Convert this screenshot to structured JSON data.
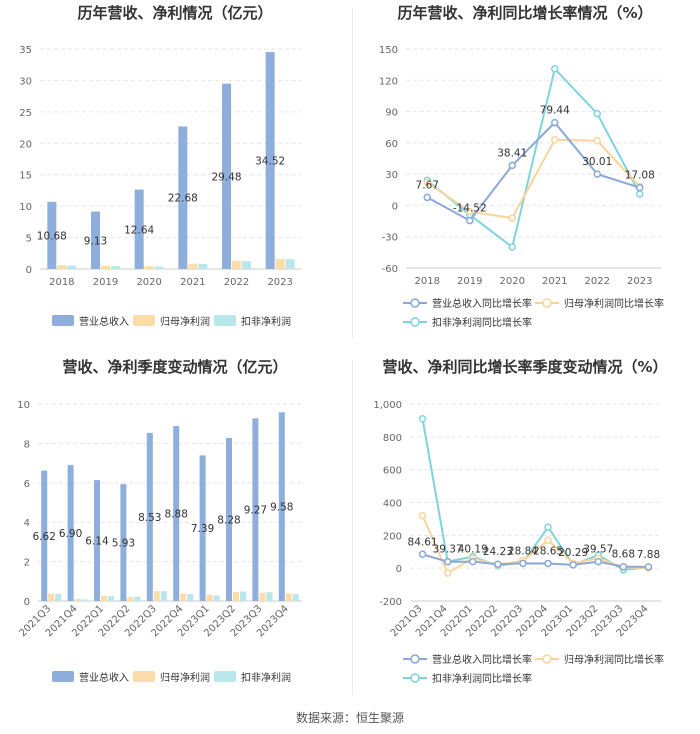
{
  "colors": {
    "revenue": "#8eaedc",
    "net_profit": "#fcdcaa",
    "deducted_profit": "#b9e7ec",
    "revenue_growth": "#8aa8d8",
    "net_growth": "#f8d49a",
    "deducted_growth": "#7fd4dc"
  },
  "source": "数据来源：恒生聚源",
  "chart_data": [
    {
      "id": "annual-amount",
      "type": "bar",
      "title": "历年营收、净利情况（亿元）",
      "categories": [
        "2018",
        "2019",
        "2020",
        "2021",
        "2022",
        "2023"
      ],
      "ylim": [
        0,
        35
      ],
      "yticks": [
        "0",
        "5",
        "10",
        "15",
        "20",
        "25",
        "30",
        "35"
      ],
      "series": [
        {
          "name": "营业总收入",
          "values": [
            10.68,
            9.13,
            12.64,
            22.68,
            29.48,
            34.52
          ],
          "labels": [
            "10.68",
            "9.13",
            "12.64",
            "22.68",
            "29.48",
            "34.52"
          ]
        },
        {
          "name": "归母净利润",
          "values": [
            0.6,
            0.5,
            0.45,
            0.85,
            1.3,
            1.6
          ]
        },
        {
          "name": "扣非净利润",
          "values": [
            0.55,
            0.48,
            0.4,
            0.8,
            1.25,
            1.55
          ]
        }
      ]
    },
    {
      "id": "annual-growth",
      "type": "line",
      "title": "历年营收、净利同比增长率情况（%）",
      "categories": [
        "2018",
        "2019",
        "2020",
        "2021",
        "2022",
        "2023"
      ],
      "ylim": [
        -60,
        150
      ],
      "yticks": [
        "-60",
        "-30",
        "0",
        "30",
        "60",
        "90",
        "120",
        "150"
      ],
      "series": [
        {
          "name": "营业总收入同比增长率",
          "values": [
            7.67,
            -14.52,
            38.41,
            79.44,
            30.01,
            17.08
          ],
          "labels": [
            "7.67",
            "-14.52",
            "38.41",
            "79.44",
            "30.01",
            "17.08"
          ]
        },
        {
          "name": "归母净利润同比增长率",
          "values": [
            22,
            -6,
            -12,
            63,
            62,
            18
          ]
        },
        {
          "name": "扣非净利润同比增长率",
          "values": [
            24,
            -9,
            -40,
            131,
            88,
            11
          ]
        }
      ]
    },
    {
      "id": "quarterly-amount",
      "type": "bar",
      "title": "营收、净利季度变动情况（亿元）",
      "categories": [
        "2021Q3",
        "2021Q4",
        "2022Q1",
        "2022Q2",
        "2022Q3",
        "2022Q4",
        "2023Q1",
        "2023Q2",
        "2023Q3",
        "2023Q4"
      ],
      "ylim": [
        0,
        10
      ],
      "yticks": [
        "0",
        "2",
        "4",
        "6",
        "8",
        "10"
      ],
      "series": [
        {
          "name": "营业总收入",
          "values": [
            6.62,
            6.9,
            6.14,
            5.93,
            8.53,
            8.88,
            7.39,
            8.28,
            9.27,
            9.58
          ],
          "labels": [
            "6.62",
            "6.90",
            "6.14",
            "5.93",
            "8.53",
            "8.88",
            "7.39",
            "8.28",
            "9.27",
            "9.58"
          ]
        },
        {
          "name": "归母净利润",
          "values": [
            0.38,
            0.1,
            0.28,
            0.2,
            0.5,
            0.38,
            0.32,
            0.45,
            0.42,
            0.38
          ]
        },
        {
          "name": "扣非净利润",
          "values": [
            0.36,
            0.08,
            0.25,
            0.22,
            0.5,
            0.36,
            0.28,
            0.48,
            0.45,
            0.35
          ]
        }
      ]
    },
    {
      "id": "quarterly-growth",
      "type": "line",
      "title": "营收、净利同比增长率季度变动情况（%）",
      "categories": [
        "2021Q3",
        "2021Q4",
        "2022Q1",
        "2022Q2",
        "2022Q3",
        "2022Q4",
        "2023Q1",
        "2023Q2",
        "2023Q3",
        "2023Q4"
      ],
      "ylim": [
        -200,
        1000
      ],
      "yticks": [
        "-200",
        "0",
        "200",
        "400",
        "600",
        "800",
        "1,000"
      ],
      "series": [
        {
          "name": "营业总收入同比增长率",
          "values": [
            84.61,
            39.37,
            40.19,
            24.23,
            28.84,
            28.65,
            20.29,
            39.57,
            8.68,
            7.88
          ],
          "labels": [
            "84.61",
            "39.37",
            "40.19",
            "24.23",
            "28.84",
            "28.65",
            "20.29",
            "39.57",
            "8.68",
            "7.88"
          ]
        },
        {
          "name": "归母净利润同比增长率",
          "values": [
            320,
            -30,
            60,
            20,
            45,
            170,
            30,
            60,
            5,
            0
          ]
        },
        {
          "name": "扣非净利润同比增长率",
          "values": [
            910,
            40,
            70,
            15,
            35,
            250,
            20,
            80,
            -10,
            5
          ]
        }
      ]
    }
  ]
}
